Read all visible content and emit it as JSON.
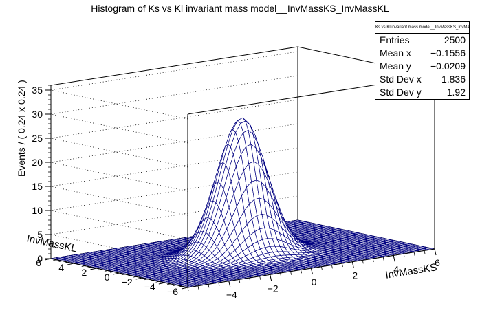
{
  "chart_data": {
    "type": "surface",
    "title": "Histogram of Ks vs Kl invariant mass model__InvMassKS_InvMassKL",
    "xlabel": "InvMassKS",
    "ylabel": "InvMassKL",
    "zlabel": "Events / ( 0.24 x 0.24 )",
    "xlim": [
      -6,
      6
    ],
    "ylim": [
      -6,
      6
    ],
    "zlim": [
      0,
      36
    ],
    "x_ticks": [
      -4,
      -2,
      0,
      2,
      4,
      6
    ],
    "x_tick_labels": [
      "−4",
      "−2",
      "0",
      "2",
      "4",
      "6"
    ],
    "y_ticks": [
      -6,
      -4,
      -2,
      0,
      2,
      4,
      6
    ],
    "y_tick_labels": [
      "−6",
      "−4",
      "−2",
      "0",
      "2",
      "4",
      "6"
    ],
    "z_ticks": [
      0,
      5,
      10,
      15,
      20,
      25,
      30,
      35
    ],
    "z_tick_labels": [
      "0",
      "5",
      "10",
      "15",
      "20",
      "25",
      "30",
      "35"
    ],
    "bin_width": 0.24,
    "bins_per_axis": 50,
    "peak_height": 28.3,
    "mesh_color": "#000080",
    "fill_color": "#ffffff",
    "grid": true
  },
  "stats": {
    "title": "Ks vs Kl invariant mass model__InvMassKS_InvMassKL",
    "entries_label": "Entries",
    "entries_value": "2500",
    "meanx_label": "Mean x",
    "meanx_value": "−0.1556",
    "meany_label": "Mean y",
    "meany_value": "−0.0209",
    "stdx_label": "Std Dev x",
    "stdx_value": "1.836",
    "stdy_label": "Std Dev y",
    "stdy_value": "1.92"
  }
}
